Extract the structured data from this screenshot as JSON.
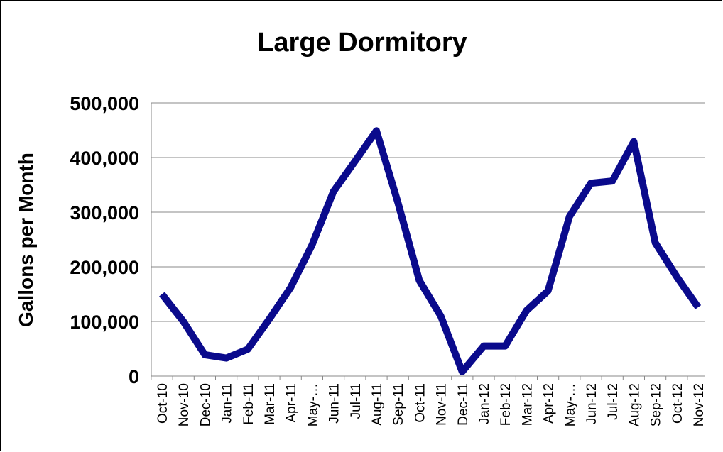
{
  "chart_data": {
    "type": "line",
    "title": "Large Dormitory",
    "y_label": "Gallons per Month",
    "categories": [
      "Oct-10",
      "Nov-10",
      "Dec-10",
      "Jan-11",
      "Feb-11",
      "Mar-11",
      "Apr-11",
      "May-…",
      "Jun-11",
      "Jul-11",
      "Aug-11",
      "Sep-11",
      "Oct-11",
      "Nov-11",
      "Dec-11",
      "Jan-12",
      "Feb-12",
      "Mar-12",
      "Apr-12",
      "May-…",
      "Jun-12",
      "Jul-12",
      "Aug-12",
      "Sep-12",
      "Oct-12",
      "Nov-12"
    ],
    "series": [
      {
        "name": "Gallons per Month",
        "color": "#0a0a8c",
        "values": [
          150000,
          100000,
          39000,
          33000,
          49000,
          104000,
          162000,
          240000,
          338000,
          393000,
          449000,
          318000,
          175000,
          110000,
          8000,
          55000,
          55000,
          120000,
          156000,
          292000,
          353000,
          357000,
          429000,
          244000,
          182000,
          126000
        ]
      }
    ],
    "ylim": [
      0,
      500000
    ],
    "yticks": [
      0,
      {
        "value": 100000,
        "label": "100,000"
      },
      {
        "value": 200000,
        "label": "200,000"
      },
      {
        "value": 300000,
        "label": "300,000"
      },
      {
        "value": 400000,
        "label": "400,000"
      },
      {
        "value": 500000,
        "label": "500,000"
      }
    ],
    "grid": true
  }
}
